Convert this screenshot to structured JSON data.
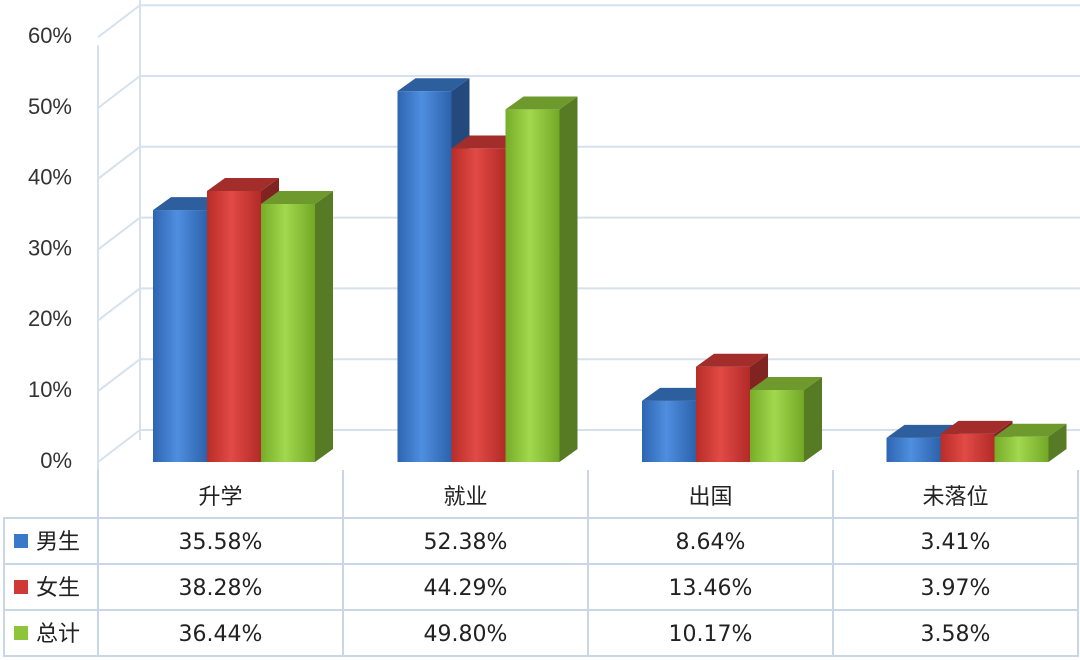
{
  "chart_data": {
    "type": "bar",
    "categories": [
      "升学",
      "就业",
      "出国",
      "未落位"
    ],
    "series": [
      {
        "name": "男生",
        "values": [
          35.58,
          52.38,
          8.64,
          3.41
        ],
        "value_labels": [
          "35.58%",
          "52.38%",
          "8.64%",
          "3.41%"
        ],
        "color": "#3a78c9"
      },
      {
        "name": "女生",
        "values": [
          38.28,
          44.29,
          13.46,
          3.97
        ],
        "value_labels": [
          "38.28%",
          "44.29%",
          "13.46%",
          "3.97%"
        ],
        "color": "#d03a36"
      },
      {
        "name": "总计",
        "values": [
          36.44,
          49.8,
          10.17,
          3.58
        ],
        "value_labels": [
          "36.44%",
          "49.80%",
          "10.17%",
          "3.58%"
        ],
        "color": "#8cc43a"
      }
    ],
    "ylim": [
      0,
      60
    ],
    "y_ticks": [
      0,
      10,
      20,
      30,
      40,
      50,
      60
    ],
    "y_tick_labels": [
      "0%",
      "10%",
      "20%",
      "30%",
      "40%",
      "50%",
      "60%"
    ],
    "grid": true,
    "style": "3d-clustered-column",
    "legend": "data-table"
  }
}
